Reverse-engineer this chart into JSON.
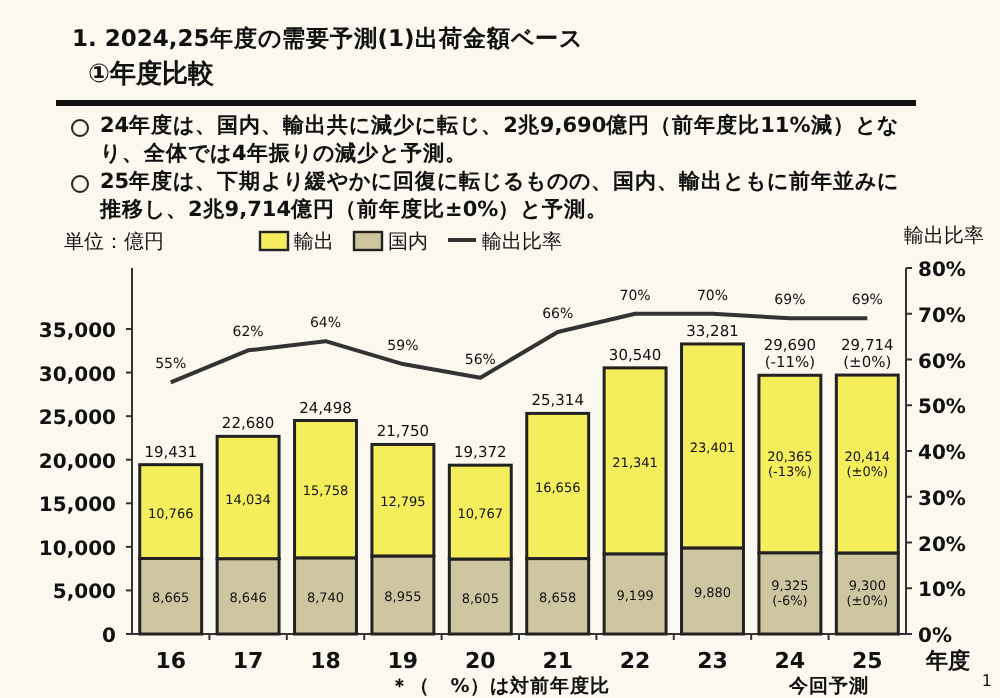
{
  "chart_data": {
    "type": "bar",
    "stacked": true,
    "title": "1. 2024,25年度の需要予測(1)出荷金額ベース",
    "subtitle": "①年度比較",
    "annotations": [
      "24年度は、国内、輸出共に減少に転じ、2兆9,690億円（前年度比11%減）となり、全体では4年振りの減少と予測。",
      "25年度は、下期より緩やかに回復に転じるものの、国内、輸出ともに前年並みに推移し、2兆9,714億円（前年度比±0%）と予測。",
      "＊（　%）は対前年度比",
      "今回予測",
      "1"
    ],
    "ylabel": "単位：億円",
    "y2label": "輸出比率",
    "xlabel": "年度",
    "categories": [
      "16",
      "17",
      "18",
      "19",
      "20",
      "21",
      "22",
      "23",
      "24",
      "25"
    ],
    "series": [
      {
        "name": "国内",
        "color": "#cdc6a1",
        "values": [
          8665,
          8646,
          8740,
          8955,
          8605,
          8658,
          9199,
          9880,
          9325,
          9300
        ],
        "value_labels": [
          "8,665",
          "8,646",
          "8,740",
          "8,955",
          "8,605",
          "8,658",
          "9,199",
          "9,880",
          "9,325 (-6%)",
          "9,300 (±0%)"
        ]
      },
      {
        "name": "輸出",
        "color": "#f4ee5c",
        "values": [
          10766,
          14034,
          15758,
          12795,
          10767,
          16656,
          21341,
          23401,
          20365,
          20414
        ],
        "value_labels": [
          "10,766",
          "14,034",
          "15,758",
          "12,795",
          "10,767",
          "16,656",
          "21,341",
          "23,401",
          "20,365 (-13%)",
          "20,414 (±0%)"
        ]
      },
      {
        "name": "輸出比率",
        "type": "line",
        "axis": "y2",
        "color": "#333333",
        "values": [
          55,
          62,
          64,
          59,
          56,
          66,
          70,
          70,
          69,
          69
        ],
        "value_labels": [
          "55%",
          "62%",
          "64%",
          "59%",
          "56%",
          "66%",
          "70%",
          "70%",
          "69%",
          "69%"
        ]
      }
    ],
    "totals": [
      "19,431",
      "22,680",
      "24,498",
      "21,750",
      "19,372",
      "25,314",
      "30,540",
      "33,281",
      "29,690 (-11%)",
      "29,714 (±0%)"
    ],
    "ylim": [
      0,
      42000
    ],
    "yticks": [
      0,
      {
        "value": 5000,
        "label": "5,000"
      },
      {
        "value": 10000,
        "label": "10,000"
      },
      {
        "value": 15000,
        "label": "15,000"
      },
      {
        "value": 20000,
        "label": "20,000"
      },
      {
        "value": 25000,
        "label": "25,000"
      },
      {
        "value": 30000,
        "label": "30,000"
      },
      {
        "value": 35000,
        "label": "35,000"
      }
    ],
    "y2lim": [
      0,
      80
    ],
    "y2ticks": [
      {
        "value": 0,
        "label": "0%"
      },
      {
        "value": 10,
        "label": "10%"
      },
      {
        "value": 20,
        "label": "20%"
      },
      {
        "value": 30,
        "label": "30%"
      },
      {
        "value": 40,
        "label": "40%"
      },
      {
        "value": 50,
        "label": "50%"
      },
      {
        "value": 60,
        "label": "60%"
      },
      {
        "value": 70,
        "label": "70%"
      },
      {
        "value": 80,
        "label": "80%"
      }
    ],
    "legend": "top",
    "grid": false
  }
}
